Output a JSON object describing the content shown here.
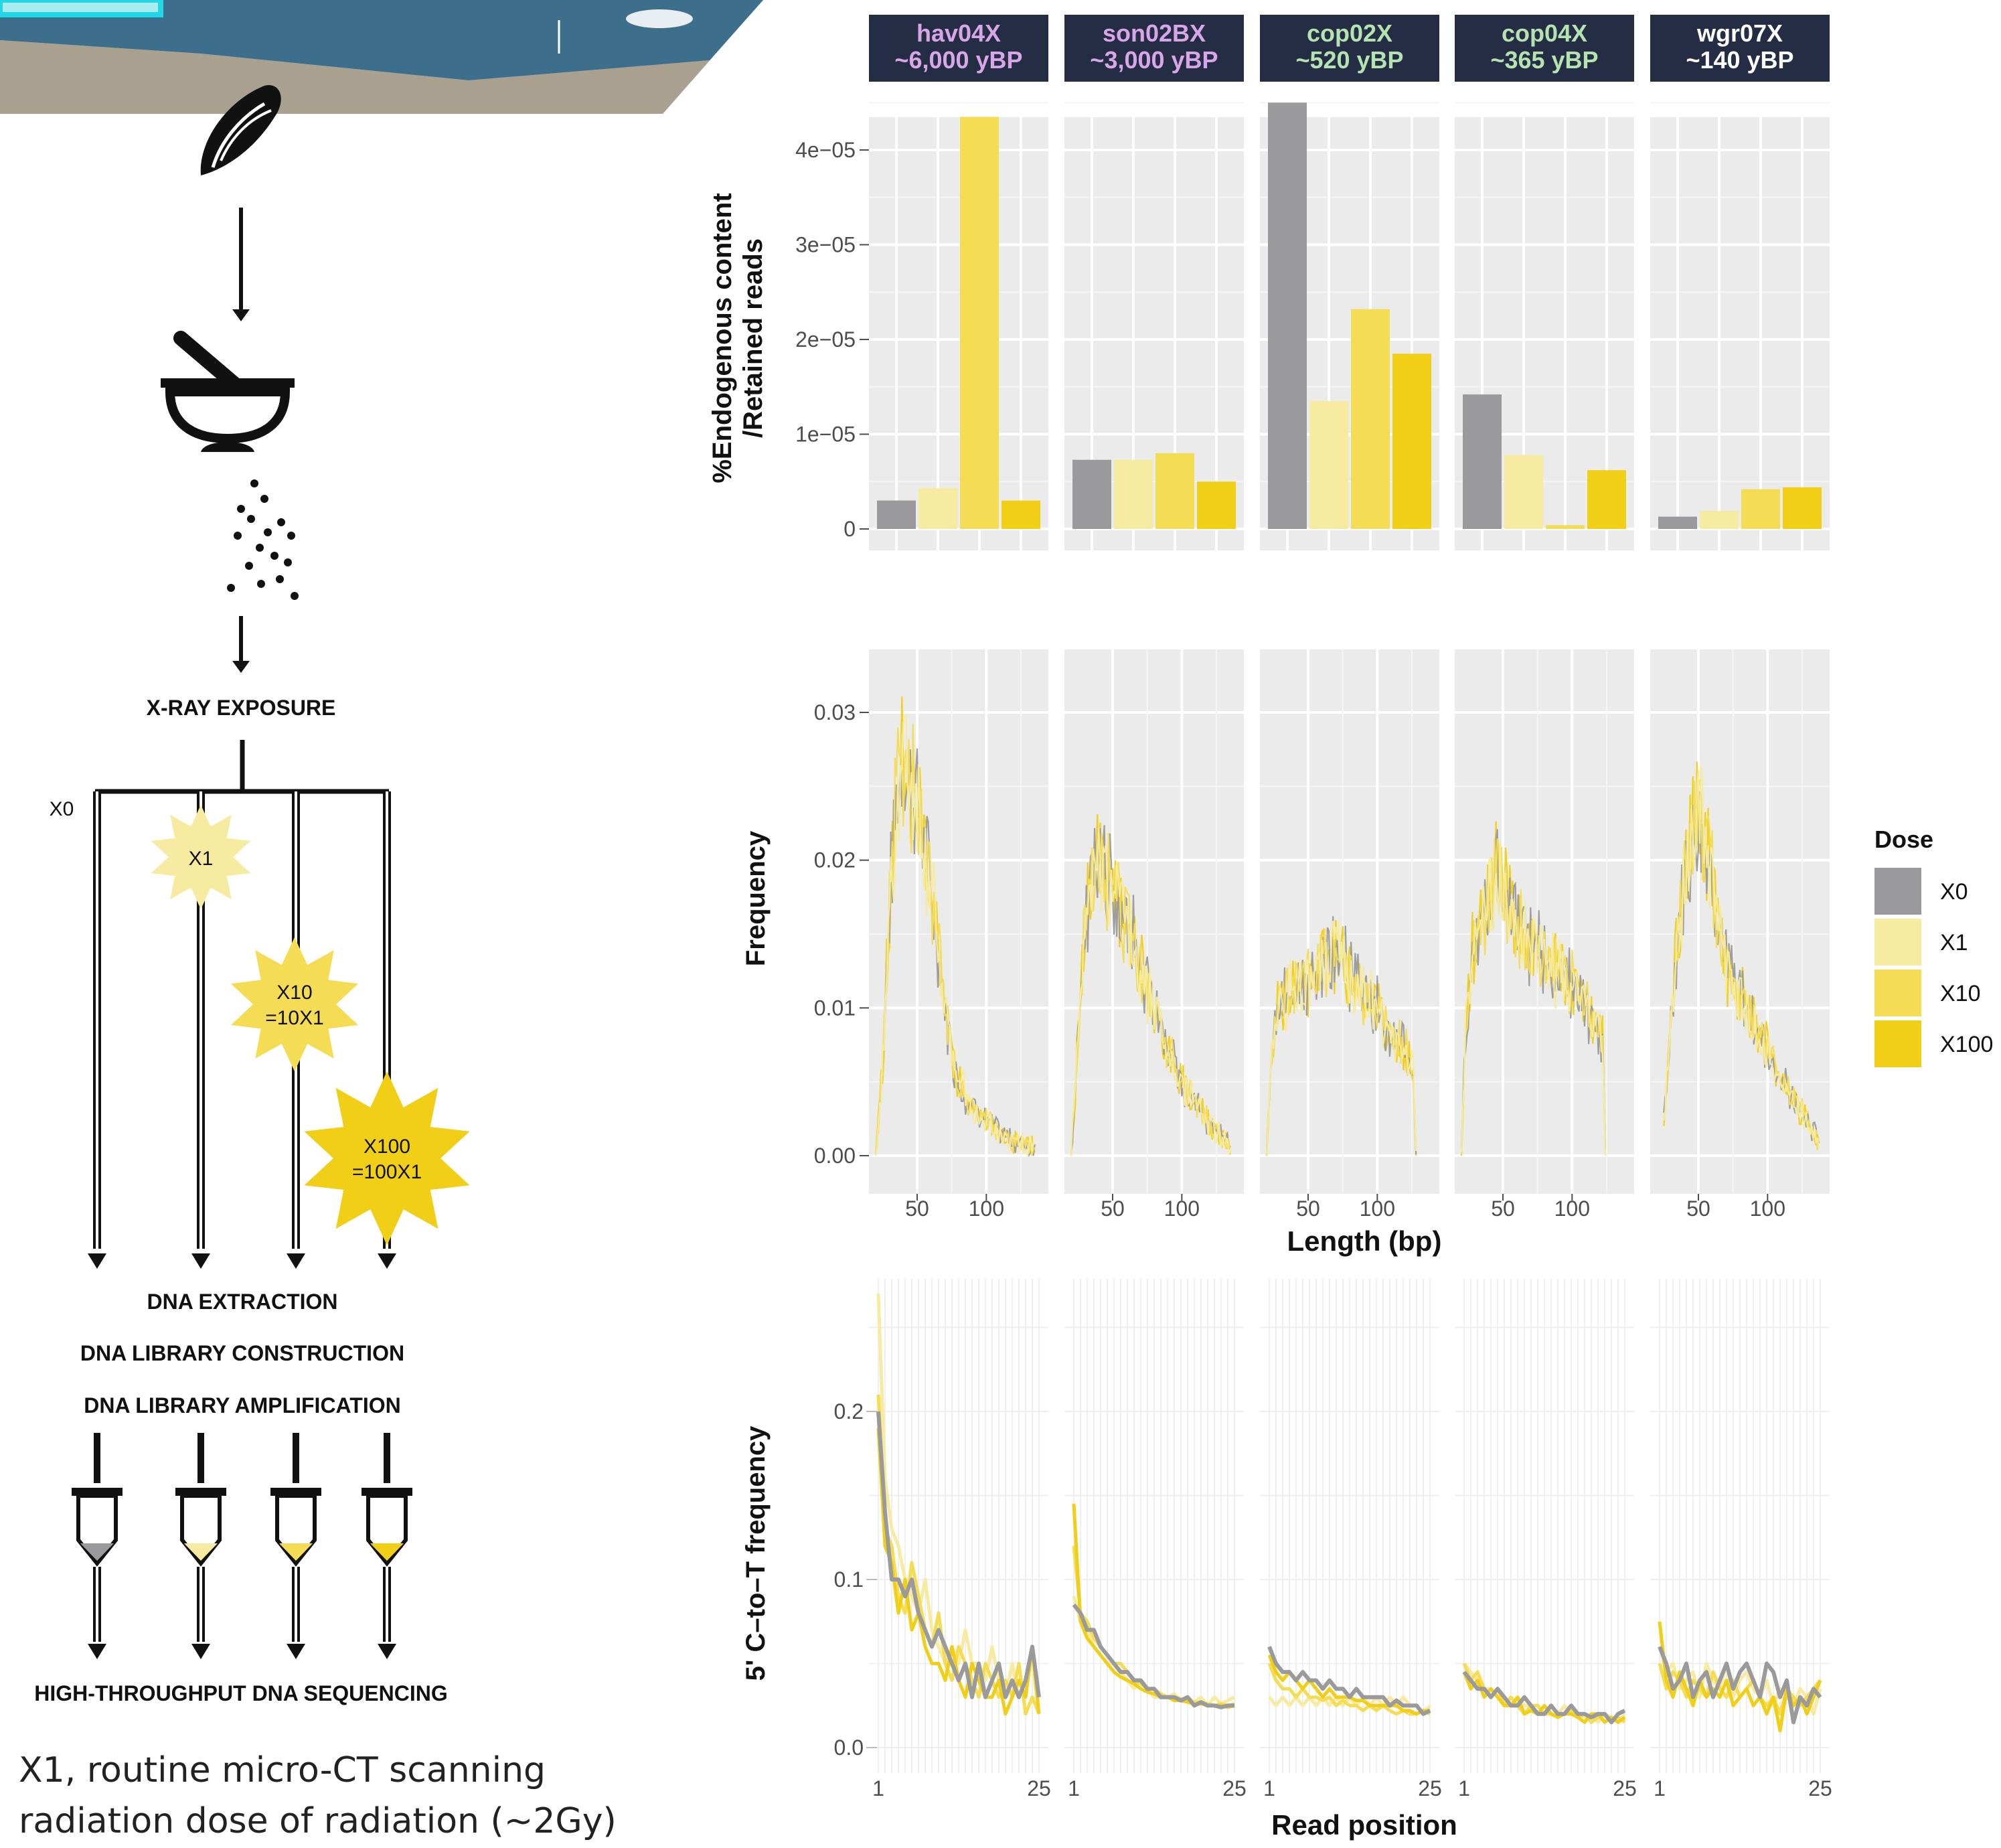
{
  "workflow": {
    "steps": {
      "xray": "X-RAY EXPOSURE",
      "extraction": "DNA EXTRACTION",
      "library": "DNA LIBRARY CONSTRUCTION",
      "amplification": "DNA LIBRARY AMPLIFICATION",
      "sequencing": "HIGH-THROUGHPUT DNA SEQUENCING"
    },
    "doses": [
      {
        "label": "X0",
        "sub": "",
        "color": "#9a9a9c"
      },
      {
        "label": "X1",
        "sub": "",
        "color": "#f6eba0"
      },
      {
        "label": "X10",
        "sub": "=10X1",
        "color": "#f4dc55"
      },
      {
        "label": "X100",
        "sub": "=100X1",
        "color": "#f1cf16"
      }
    ],
    "caption_lines": [
      "X1, routine micro-CT scanning",
      "radiation dose of radiation (~2Gy)"
    ]
  },
  "chart_data": [
    {
      "type": "bar",
      "ylabel_lines": [
        "%Endogenous content",
        "/Retained reads"
      ],
      "yticks": [
        "0",
        "1e−05",
        "2e−05",
        "3e−05",
        "4e−05"
      ],
      "ylim": [
        0,
        4.6e-05
      ],
      "series_names": [
        "X0",
        "X1",
        "X10",
        "X100"
      ],
      "facets": [
        {
          "name": "hav04X",
          "age": "~6,000 yBP",
          "name_color": "#d7a6e6",
          "values": [
            3e-06,
            4.3e-06,
            4.35e-05,
            3e-06
          ]
        },
        {
          "name": "son02BX",
          "age": "~3,000 yBP",
          "name_color": "#d7a6e6",
          "values": [
            7.3e-06,
            7.3e-06,
            8e-06,
            5e-06
          ]
        },
        {
          "name": "cop02X",
          "age": "~520 yBP",
          "name_color": "#b4e3b0",
          "values": [
            4.5e-05,
            1.35e-05,
            2.32e-05,
            1.85e-05
          ]
        },
        {
          "name": "cop04X",
          "age": "~365 yBP",
          "name_color": "#b4e3b0",
          "values": [
            1.42e-05,
            7.8e-06,
            4e-07,
            6.2e-06
          ]
        },
        {
          "name": "wgr07X",
          "age": "~140 yBP",
          "name_color": "#ffffff",
          "values": [
            1.3e-06,
            1.9e-06,
            4.2e-06,
            4.4e-06
          ]
        }
      ]
    },
    {
      "type": "line",
      "ylabel": "Frequency",
      "xlabel": "Length (bp)",
      "yticks": [
        "0.00",
        "0.01",
        "0.02",
        "0.03"
      ],
      "xticks": [
        "50",
        "100"
      ],
      "xlim": [
        20,
        140
      ],
      "ylim": [
        -0.001,
        0.0335
      ],
      "facets": [
        {
          "peak_x": 42,
          "peak_y": 0.027,
          "end_x": 135,
          "points": [
            [
              20,
              0.0
            ],
            [
              25,
              0.006
            ],
            [
              30,
              0.017
            ],
            [
              35,
              0.024
            ],
            [
              40,
              0.027
            ],
            [
              45,
              0.025
            ],
            [
              50,
              0.024
            ],
            [
              55,
              0.021
            ],
            [
              60,
              0.018
            ],
            [
              65,
              0.014
            ],
            [
              70,
              0.01
            ],
            [
              75,
              0.007
            ],
            [
              80,
              0.005
            ],
            [
              85,
              0.004
            ],
            [
              90,
              0.0035
            ],
            [
              100,
              0.0025
            ],
            [
              110,
              0.0015
            ],
            [
              120,
              0.001
            ],
            [
              130,
              0.0007
            ],
            [
              135,
              0.0005
            ]
          ]
        },
        {
          "peak_x": 42,
          "peak_y": 0.0205,
          "end_x": 135,
          "points": [
            [
              20,
              0.0
            ],
            [
              25,
              0.008
            ],
            [
              30,
              0.015
            ],
            [
              35,
              0.019
            ],
            [
              40,
              0.0205
            ],
            [
              45,
              0.019
            ],
            [
              50,
              0.018
            ],
            [
              55,
              0.017
            ],
            [
              60,
              0.016
            ],
            [
              70,
              0.013
            ],
            [
              80,
              0.01
            ],
            [
              90,
              0.007
            ],
            [
              100,
              0.005
            ],
            [
              110,
              0.0035
            ],
            [
              120,
              0.002
            ],
            [
              130,
              0.0012
            ],
            [
              135,
              0.0005
            ]
          ]
        },
        {
          "peak_x": 72,
          "peak_y": 0.014,
          "end_x": 128,
          "points": [
            [
              20,
              0.0
            ],
            [
              23,
              0.006
            ],
            [
              28,
              0.01
            ],
            [
              35,
              0.011
            ],
            [
              45,
              0.011
            ],
            [
              55,
              0.012
            ],
            [
              65,
              0.013
            ],
            [
              72,
              0.014
            ],
            [
              80,
              0.012
            ],
            [
              90,
              0.011
            ],
            [
              100,
              0.01
            ],
            [
              110,
              0.008
            ],
            [
              120,
              0.007
            ],
            [
              126,
              0.006
            ],
            [
              128,
              0.0
            ]
          ]
        },
        {
          "peak_x": 45,
          "peak_y": 0.019,
          "end_x": 124,
          "points": [
            [
              20,
              0.0
            ],
            [
              23,
              0.008
            ],
            [
              28,
              0.014
            ],
            [
              35,
              0.016
            ],
            [
              45,
              0.019
            ],
            [
              55,
              0.017
            ],
            [
              65,
              0.015
            ],
            [
              75,
              0.014
            ],
            [
              85,
              0.013
            ],
            [
              95,
              0.012
            ],
            [
              105,
              0.011
            ],
            [
              115,
              0.009
            ],
            [
              122,
              0.008
            ],
            [
              124,
              0.0
            ]
          ]
        },
        {
          "peak_x": 50,
          "peak_y": 0.023,
          "end_x": 137,
          "points": [
            [
              25,
              0.002
            ],
            [
              30,
              0.009
            ],
            [
              35,
              0.015
            ],
            [
              40,
              0.019
            ],
            [
              45,
              0.021
            ],
            [
              50,
              0.023
            ],
            [
              55,
              0.021
            ],
            [
              60,
              0.019
            ],
            [
              65,
              0.016
            ],
            [
              70,
              0.013
            ],
            [
              80,
              0.011
            ],
            [
              90,
              0.009
            ],
            [
              100,
              0.007
            ],
            [
              110,
              0.005
            ],
            [
              120,
              0.0035
            ],
            [
              130,
              0.002
            ],
            [
              137,
              0.001
            ]
          ]
        }
      ]
    },
    {
      "type": "line",
      "ylabel": "5' C–to–T frequency",
      "xlabel": "Read position",
      "yticks": [
        "0.0",
        "0.1",
        "0.2"
      ],
      "xticks": [
        "1",
        "25"
      ],
      "xlim": [
        1,
        25
      ],
      "ylim": [
        -0.005,
        0.285
      ],
      "facets": [
        {
          "X0": [
            0.2,
            0.14,
            0.1,
            0.1,
            0.09,
            0.1,
            0.08,
            0.07,
            0.06,
            0.07,
            0.06,
            0.05,
            0.04,
            0.05,
            0.03,
            0.05,
            0.03,
            0.04,
            0.05,
            0.03,
            0.04,
            0.03,
            0.04,
            0.06,
            0.03
          ],
          "X1": [
            0.27,
            0.16,
            0.13,
            0.12,
            0.1,
            0.09,
            0.08,
            0.1,
            0.07,
            0.06,
            0.05,
            0.06,
            0.05,
            0.07,
            0.05,
            0.05,
            0.04,
            0.06,
            0.04,
            0.03,
            0.05,
            0.03,
            0.04,
            0.05,
            0.02
          ],
          "X10": [
            0.21,
            0.13,
            0.12,
            0.09,
            0.08,
            0.11,
            0.09,
            0.07,
            0.06,
            0.08,
            0.05,
            0.04,
            0.06,
            0.05,
            0.04,
            0.03,
            0.05,
            0.04,
            0.03,
            0.04,
            0.03,
            0.05,
            0.02,
            0.03,
            0.02
          ],
          "X100": [
            0.19,
            0.12,
            0.11,
            0.08,
            0.1,
            0.07,
            0.08,
            0.06,
            0.05,
            0.05,
            0.04,
            0.06,
            0.04,
            0.03,
            0.05,
            0.04,
            0.03,
            0.03,
            0.04,
            0.02,
            0.03,
            0.04,
            0.03,
            0.06,
            0.02
          ]
        },
        {
          "X0": [
            0.085,
            0.08,
            0.07,
            0.07,
            0.06,
            0.055,
            0.05,
            0.045,
            0.045,
            0.04,
            0.04,
            0.035,
            0.035,
            0.03,
            0.03,
            0.03,
            0.028,
            0.03,
            0.025,
            0.027,
            0.025,
            0.025,
            0.024,
            0.025,
            0.025
          ],
          "X1": [
            0.09,
            0.075,
            0.07,
            0.06,
            0.055,
            0.05,
            0.05,
            0.045,
            0.04,
            0.035,
            0.04,
            0.035,
            0.03,
            0.03,
            0.03,
            0.032,
            0.028,
            0.03,
            0.027,
            0.03,
            0.025,
            0.03,
            0.026,
            0.028,
            0.03
          ],
          "X10": [
            0.12,
            0.08,
            0.075,
            0.065,
            0.06,
            0.055,
            0.05,
            0.05,
            0.045,
            0.04,
            0.038,
            0.035,
            0.035,
            0.032,
            0.03,
            0.03,
            0.029,
            0.028,
            0.027,
            0.027,
            0.026,
            0.025,
            0.026,
            0.025,
            0.026
          ],
          "X100": [
            0.145,
            0.075,
            0.065,
            0.06,
            0.055,
            0.05,
            0.045,
            0.042,
            0.04,
            0.038,
            0.035,
            0.033,
            0.032,
            0.03,
            0.03,
            0.028,
            0.028,
            0.027,
            0.026,
            0.026,
            0.025,
            0.025,
            0.025,
            0.024,
            0.025
          ]
        },
        {
          "X0": [
            0.06,
            0.05,
            0.045,
            0.045,
            0.04,
            0.045,
            0.04,
            0.04,
            0.035,
            0.04,
            0.035,
            0.035,
            0.03,
            0.035,
            0.03,
            0.03,
            0.03,
            0.03,
            0.025,
            0.028,
            0.025,
            0.025,
            0.025,
            0.02,
            0.022
          ],
          "X1": [
            0.03,
            0.025,
            0.03,
            0.025,
            0.03,
            0.025,
            0.03,
            0.025,
            0.03,
            0.025,
            0.03,
            0.025,
            0.03,
            0.025,
            0.03,
            0.025,
            0.03,
            0.025,
            0.03,
            0.025,
            0.03,
            0.025,
            0.025,
            0.02,
            0.025
          ],
          "X10": [
            0.05,
            0.04,
            0.035,
            0.035,
            0.03,
            0.035,
            0.03,
            0.03,
            0.028,
            0.03,
            0.025,
            0.028,
            0.025,
            0.025,
            0.022,
            0.025,
            0.022,
            0.025,
            0.022,
            0.02,
            0.022,
            0.02,
            0.02,
            0.022,
            0.02
          ],
          "X100": [
            0.055,
            0.045,
            0.04,
            0.045,
            0.04,
            0.035,
            0.04,
            0.035,
            0.03,
            0.035,
            0.03,
            0.03,
            0.03,
            0.028,
            0.028,
            0.025,
            0.025,
            0.025,
            0.025,
            0.025,
            0.022,
            0.022,
            0.02,
            0.022,
            0.022
          ]
        },
        {
          "X0": [
            0.045,
            0.04,
            0.035,
            0.035,
            0.03,
            0.035,
            0.03,
            0.025,
            0.025,
            0.03,
            0.025,
            0.02,
            0.02,
            0.025,
            0.02,
            0.02,
            0.025,
            0.02,
            0.02,
            0.018,
            0.02,
            0.02,
            0.015,
            0.02,
            0.022
          ],
          "X1": [
            0.05,
            0.045,
            0.04,
            0.035,
            0.035,
            0.03,
            0.03,
            0.025,
            0.03,
            0.025,
            0.025,
            0.02,
            0.025,
            0.02,
            0.02,
            0.025,
            0.02,
            0.02,
            0.018,
            0.02,
            0.015,
            0.02,
            0.018,
            0.015,
            0.02
          ],
          "X10": [
            0.05,
            0.04,
            0.045,
            0.035,
            0.03,
            0.035,
            0.025,
            0.03,
            0.025,
            0.02,
            0.025,
            0.025,
            0.02,
            0.02,
            0.018,
            0.02,
            0.022,
            0.018,
            0.02,
            0.015,
            0.018,
            0.02,
            0.015,
            0.018,
            0.015
          ],
          "X100": [
            0.045,
            0.035,
            0.04,
            0.03,
            0.035,
            0.03,
            0.025,
            0.025,
            0.03,
            0.02,
            0.022,
            0.02,
            0.025,
            0.02,
            0.018,
            0.02,
            0.02,
            0.018,
            0.015,
            0.02,
            0.02,
            0.015,
            0.018,
            0.015,
            0.018
          ]
        },
        {
          "X0": [
            0.06,
            0.05,
            0.035,
            0.04,
            0.05,
            0.03,
            0.04,
            0.045,
            0.03,
            0.04,
            0.05,
            0.035,
            0.045,
            0.05,
            0.04,
            0.03,
            0.05,
            0.045,
            0.03,
            0.04,
            0.015,
            0.03,
            0.025,
            0.035,
            0.03
          ],
          "X1": [
            0.06,
            0.045,
            0.05,
            0.035,
            0.04,
            0.045,
            0.03,
            0.05,
            0.04,
            0.035,
            0.05,
            0.03,
            0.04,
            0.045,
            0.035,
            0.03,
            0.04,
            0.025,
            0.035,
            0.03,
            0.025,
            0.035,
            0.03,
            0.02,
            0.035
          ],
          "X10": [
            0.05,
            0.035,
            0.045,
            0.04,
            0.03,
            0.04,
            0.035,
            0.03,
            0.045,
            0.035,
            0.03,
            0.04,
            0.03,
            0.035,
            0.04,
            0.03,
            0.025,
            0.03,
            0.02,
            0.035,
            0.03,
            0.025,
            0.03,
            0.035,
            0.04
          ],
          "X100": [
            0.075,
            0.04,
            0.03,
            0.045,
            0.035,
            0.025,
            0.04,
            0.03,
            0.035,
            0.03,
            0.04,
            0.025,
            0.03,
            0.035,
            0.025,
            0.03,
            0.02,
            0.03,
            0.01,
            0.035,
            0.025,
            0.03,
            0.02,
            0.03,
            0.04
          ]
        }
      ]
    }
  ],
  "legend": {
    "title": "Dose",
    "items": [
      {
        "label": "X0",
        "color": "#9a9a9c"
      },
      {
        "label": "X1",
        "color": "#f6eba0"
      },
      {
        "label": "X10",
        "color": "#f4dc55"
      },
      {
        "label": "X100",
        "color": "#f1cf16"
      }
    ]
  }
}
